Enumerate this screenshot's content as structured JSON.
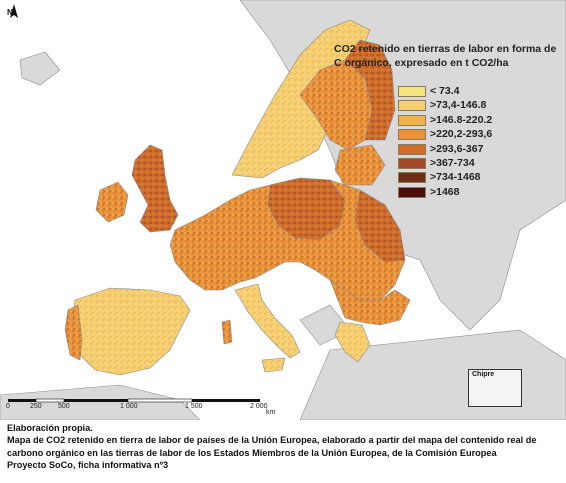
{
  "map": {
    "north_label": "N",
    "legend": {
      "title_line1": "CO2 retenido en tierras de labor en forma de",
      "title_line2": "C orgánico, expresado en  t CO2/ha",
      "items": [
        {
          "label": "< 73.4",
          "color": "#f2e57a"
        },
        {
          "label": ">73,4-146.8",
          "color": "#f6cf74"
        },
        {
          "label": ">146.8-220.2",
          "color": "#f0b04a"
        },
        {
          "label": ">220,2-293,6",
          "color": "#e8923a"
        },
        {
          "label": ">293,6-367",
          "color": "#cf6e2c"
        },
        {
          "label": ">367-734",
          "color": "#a8482a"
        },
        {
          "label": ">734-1468",
          "color": "#6e2e16"
        },
        {
          "label": ">1468",
          "color": "#4a0f0a"
        }
      ]
    },
    "inset_label": "Chipre",
    "scale_labels": [
      "0",
      "250",
      "500",
      "1 000",
      "1 500",
      "2 000"
    ],
    "scale_unit": "km",
    "colors": {
      "sea": "#ffffff",
      "non_eu_land": "#d9d9d9",
      "border": "#8c8c8c"
    }
  },
  "caption": {
    "line1": "Elaboración propia.",
    "line2": "Mapa de CO2 retenido en tierra de labor de países de la Unión Europea, elaborado a partir del mapa del contenido real de",
    "line3": "carbono orgánico en las tierras de labor de los Estados Miembros de la Unión Europea, de la Comisión Europea",
    "line4": "Proyecto SoCo,   ficha informativa nº3"
  }
}
